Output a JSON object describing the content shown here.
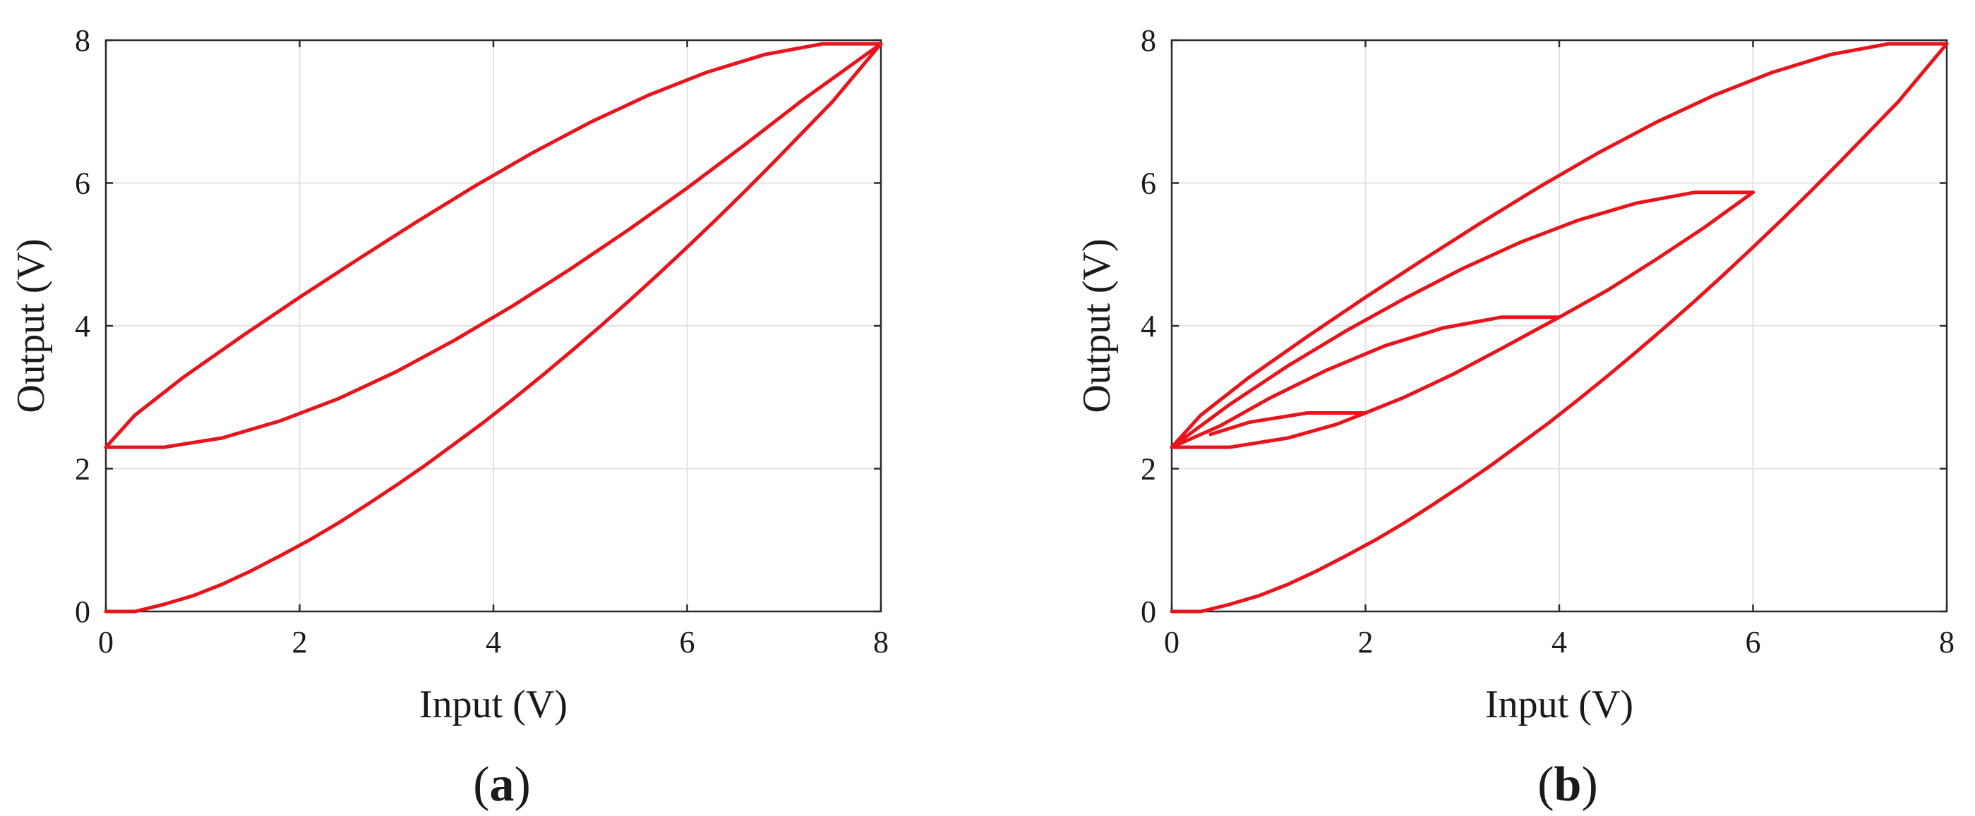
{
  "chart_data": [
    {
      "type": "line",
      "panel_label": "a",
      "xlabel": "Input (V)",
      "ylabel": "Output (V)",
      "xlim": [
        0,
        8
      ],
      "ylim": [
        0,
        8
      ],
      "xticks": [
        "0",
        "2",
        "4",
        "6",
        "8"
      ],
      "yticks": [
        "0",
        "2",
        "4",
        "6",
        "8"
      ],
      "grid": true,
      "series_color": "#e8141b",
      "series": [
        {
          "x": [
            0,
            0.3,
            0.6,
            0.9,
            1.2,
            1.5,
            1.8,
            2.1,
            2.4,
            2.7,
            3.0,
            3.3,
            3.6,
            3.9,
            4.2,
            4.5,
            4.8,
            5.1,
            5.4,
            5.7,
            6.0,
            6.3,
            6.6,
            6.9,
            7.2,
            7.5,
            8.0
          ],
          "y": [
            0,
            0,
            0.1,
            0.22,
            0.38,
            0.57,
            0.78,
            1.0,
            1.24,
            1.5,
            1.77,
            2.05,
            2.35,
            2.65,
            2.97,
            3.3,
            3.64,
            3.99,
            4.35,
            4.72,
            5.1,
            5.49,
            5.89,
            6.3,
            6.72,
            7.14,
            7.95
          ]
        },
        {
          "x": [
            8.0,
            7.4,
            6.8,
            6.2,
            5.6,
            5.0,
            4.4,
            3.8,
            3.2,
            2.6,
            2.0,
            1.4,
            0.8,
            0.3,
            0
          ],
          "y": [
            7.95,
            7.95,
            7.8,
            7.55,
            7.23,
            6.85,
            6.42,
            5.95,
            5.45,
            4.93,
            4.4,
            3.85,
            3.28,
            2.75,
            2.3
          ]
        },
        {
          "x": [
            0,
            0.6,
            1.2,
            1.8,
            2.4,
            3.0,
            3.6,
            4.2,
            4.8,
            5.4,
            6.0,
            6.6,
            7.2,
            8.0
          ],
          "y": [
            2.3,
            2.3,
            2.43,
            2.67,
            2.98,
            3.36,
            3.8,
            4.28,
            4.8,
            5.35,
            5.93,
            6.54,
            7.17,
            7.95
          ]
        }
      ]
    },
    {
      "type": "line",
      "panel_label": "b",
      "xlabel": "Input (V)",
      "ylabel": "Output (V)",
      "xlim": [
        0,
        8
      ],
      "ylim": [
        0,
        8
      ],
      "xticks": [
        "0",
        "2",
        "4",
        "6",
        "8"
      ],
      "yticks": [
        "0",
        "2",
        "4",
        "6",
        "8"
      ],
      "grid": true,
      "series_color": "#e8141b",
      "series": [
        {
          "x": [
            0,
            0.3,
            0.6,
            0.9,
            1.2,
            1.5,
            1.8,
            2.1,
            2.4,
            2.7,
            3.0,
            3.3,
            3.6,
            3.9,
            4.2,
            4.5,
            4.8,
            5.1,
            5.4,
            5.7,
            6.0,
            6.3,
            6.6,
            6.9,
            7.2,
            7.5,
            8.0
          ],
          "y": [
            0,
            0,
            0.1,
            0.22,
            0.38,
            0.57,
            0.78,
            1.0,
            1.24,
            1.5,
            1.77,
            2.05,
            2.35,
            2.65,
            2.97,
            3.3,
            3.64,
            3.99,
            4.35,
            4.72,
            5.1,
            5.49,
            5.89,
            6.3,
            6.72,
            7.14,
            7.95
          ]
        },
        {
          "x": [
            8.0,
            7.4,
            6.8,
            6.2,
            5.6,
            5.0,
            4.4,
            3.8,
            3.2,
            2.6,
            2.0,
            1.4,
            0.8,
            0.3,
            0
          ],
          "y": [
            7.95,
            7.95,
            7.8,
            7.55,
            7.23,
            6.85,
            6.42,
            5.95,
            5.45,
            4.93,
            4.4,
            3.85,
            3.28,
            2.75,
            2.3
          ]
        },
        {
          "x": [
            0,
            0.6,
            1.2,
            1.7,
            2.0,
            2.4,
            2.9,
            3.4,
            4.0,
            4.5,
            5.0,
            5.5,
            6.0
          ],
          "y": [
            2.3,
            2.3,
            2.43,
            2.62,
            2.78,
            3.0,
            3.32,
            3.68,
            4.12,
            4.5,
            4.93,
            5.38,
            5.87
          ]
        },
        {
          "x": [
            6.0,
            5.4,
            4.8,
            4.2,
            3.6,
            3.0,
            2.4,
            1.8,
            1.2,
            0.6,
            0
          ],
          "y": [
            5.87,
            5.87,
            5.72,
            5.48,
            5.17,
            4.8,
            4.38,
            3.93,
            3.44,
            2.9,
            2.3
          ]
        },
        {
          "x": [
            4.0,
            3.4,
            2.8,
            2.2,
            1.6,
            1.0,
            0.5,
            0
          ],
          "y": [
            4.12,
            4.12,
            3.97,
            3.72,
            3.38,
            2.98,
            2.6,
            2.3
          ]
        },
        {
          "x": [
            2.0,
            1.4,
            0.8,
            0.4
          ],
          "y": [
            2.78,
            2.78,
            2.65,
            2.48
          ]
        }
      ]
    }
  ]
}
